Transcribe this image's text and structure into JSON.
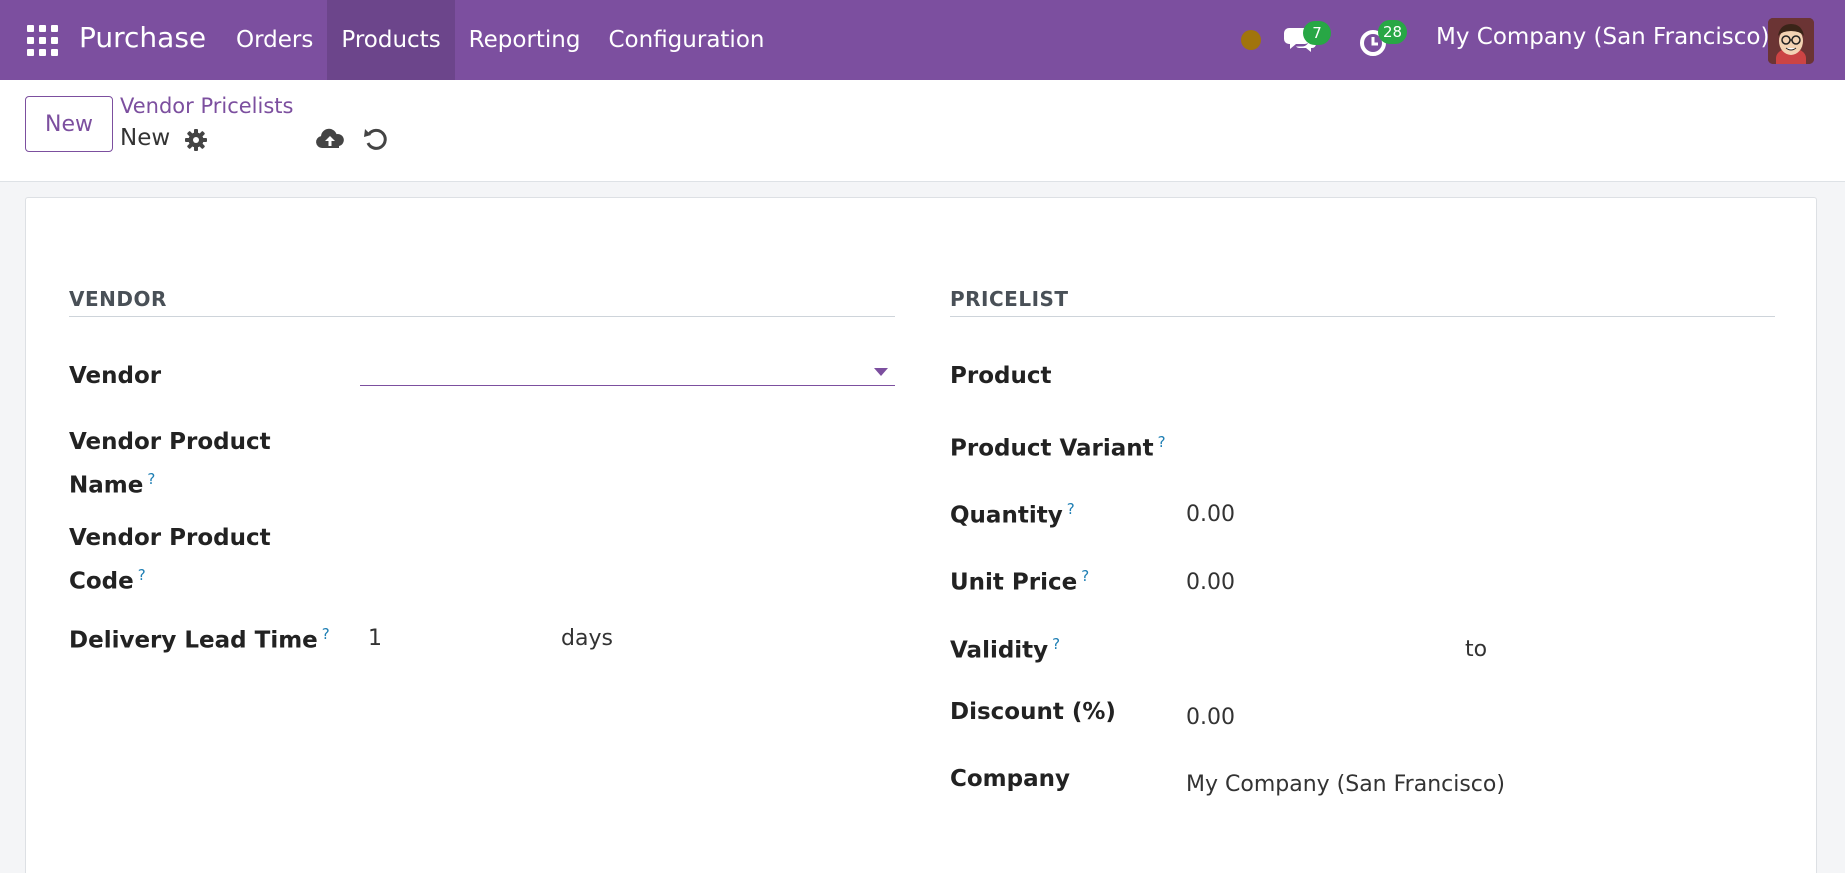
{
  "navbar": {
    "brand": "Purchase",
    "menu": [
      {
        "label": "Orders"
      },
      {
        "label": "Products"
      },
      {
        "label": "Reporting"
      },
      {
        "label": "Configuration"
      }
    ],
    "messages_count": "7",
    "activities_count": "28",
    "company": "My Company (San Francisco)",
    "colors": {
      "primary": "#7c4f9f",
      "badge": "#28a745",
      "status_dot": "#a1740c"
    }
  },
  "control_panel": {
    "new_label": "New",
    "breadcrumb": "Vendor Pricelists",
    "record_name": "New"
  },
  "vendor_section": {
    "title": "VENDOR",
    "vendor_label": "Vendor",
    "vendor_value": "",
    "vendor_product_name_label_1": "Vendor Product",
    "vendor_product_name_label_2": "Name",
    "vendor_product_code_label_1": "Vendor Product",
    "vendor_product_code_label_2": "Code",
    "lead_time_label": "Delivery Lead Time",
    "lead_time_value": "1",
    "lead_time_unit": "days",
    "help_mark": "?"
  },
  "pricelist_section": {
    "title": "PRICELIST",
    "product_label": "Product",
    "product_variant_label": "Product Variant",
    "quantity_label": "Quantity",
    "quantity_value": "0.00",
    "unit_price_label": "Unit Price",
    "unit_price_value": "0.00",
    "validity_label": "Validity",
    "validity_to": "to",
    "discount_label": "Discount (%)",
    "discount_value": "0.00",
    "company_label": "Company",
    "company_value": "My Company (San Francisco)"
  }
}
